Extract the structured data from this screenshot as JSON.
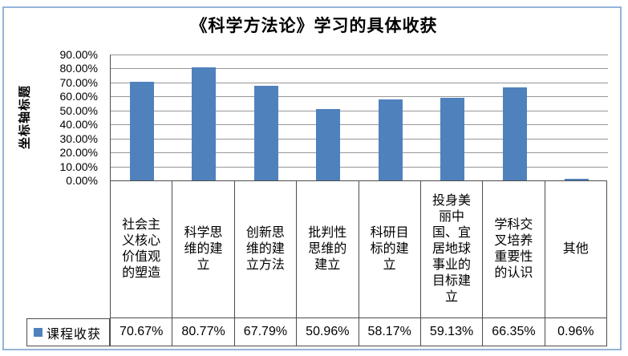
{
  "chart_data": {
    "type": "bar",
    "title": "《科学方法论》学习的具体收获",
    "xlabel": "",
    "ylabel": "坐标轴标题",
    "categories": [
      "社会主义核心价值观的塑造",
      "科学思维的建立",
      "创新思维的建立方法",
      "批判性思维的建立",
      "科研目标的建立",
      "投身美丽中国、宜居地球事业的目标建立",
      "学科交叉培养重要性的认识",
      "其他"
    ],
    "series": [
      {
        "name": "课程收获",
        "values": [
          70.67,
          80.77,
          67.79,
          50.96,
          58.17,
          59.13,
          66.35,
          0.96
        ]
      }
    ],
    "value_labels": [
      "70.67%",
      "80.77%",
      "67.79%",
      "50.96%",
      "58.17%",
      "59.13%",
      "66.35%",
      "0.96%"
    ],
    "y_ticks": [
      "0.00%",
      "10.00%",
      "20.00%",
      "30.00%",
      "40.00%",
      "50.00%",
      "60.00%",
      "70.00%",
      "80.00%",
      "90.00%"
    ],
    "ylim": [
      0,
      90
    ],
    "grid": true,
    "legend_position": "data-table-left",
    "colors": {
      "bar": "#4F81BD",
      "gridline": "#969696",
      "table_border": "#4d4d4d",
      "frame_border": "#95B3D7",
      "text": "#000000"
    }
  }
}
